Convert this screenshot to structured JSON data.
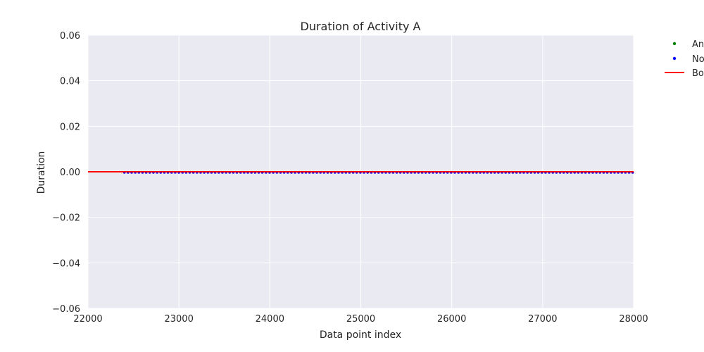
{
  "chart_data": {
    "type": "line",
    "title": "Duration of Activity A",
    "xlabel": "Data point index",
    "ylabel": "Duration",
    "xlim": [
      22000,
      28000
    ],
    "ylim": [
      -0.06,
      0.06
    ],
    "xticks": [
      22000,
      23000,
      24000,
      25000,
      26000,
      27000,
      28000
    ],
    "yticks": [
      -0.06,
      -0.04,
      -0.02,
      0.0,
      0.02,
      0.04,
      0.06
    ],
    "xtick_labels": [
      "22000",
      "23000",
      "24000",
      "25000",
      "26000",
      "27000",
      "28000"
    ],
    "ytick_labels": [
      "−0.06",
      "−0.04",
      "−0.02",
      "0.00",
      "0.02",
      "0.04",
      "0.06"
    ],
    "grid": true,
    "legend_position": "outside-top-right",
    "series": [
      {
        "name": "An",
        "kind": "scatter",
        "color": "#008000",
        "x": [],
        "y": []
      },
      {
        "name": "No",
        "kind": "scatter",
        "color": "#0000ff",
        "x_range": [
          22400,
          27990
        ],
        "y": 0
      },
      {
        "name": "Bo",
        "kind": "line",
        "color": "#ff0000",
        "x": [
          22000,
          28000
        ],
        "y": [
          0,
          0
        ]
      }
    ],
    "colors": {
      "plot_background": "#eaeaf2",
      "grid": "#ffffff"
    }
  }
}
